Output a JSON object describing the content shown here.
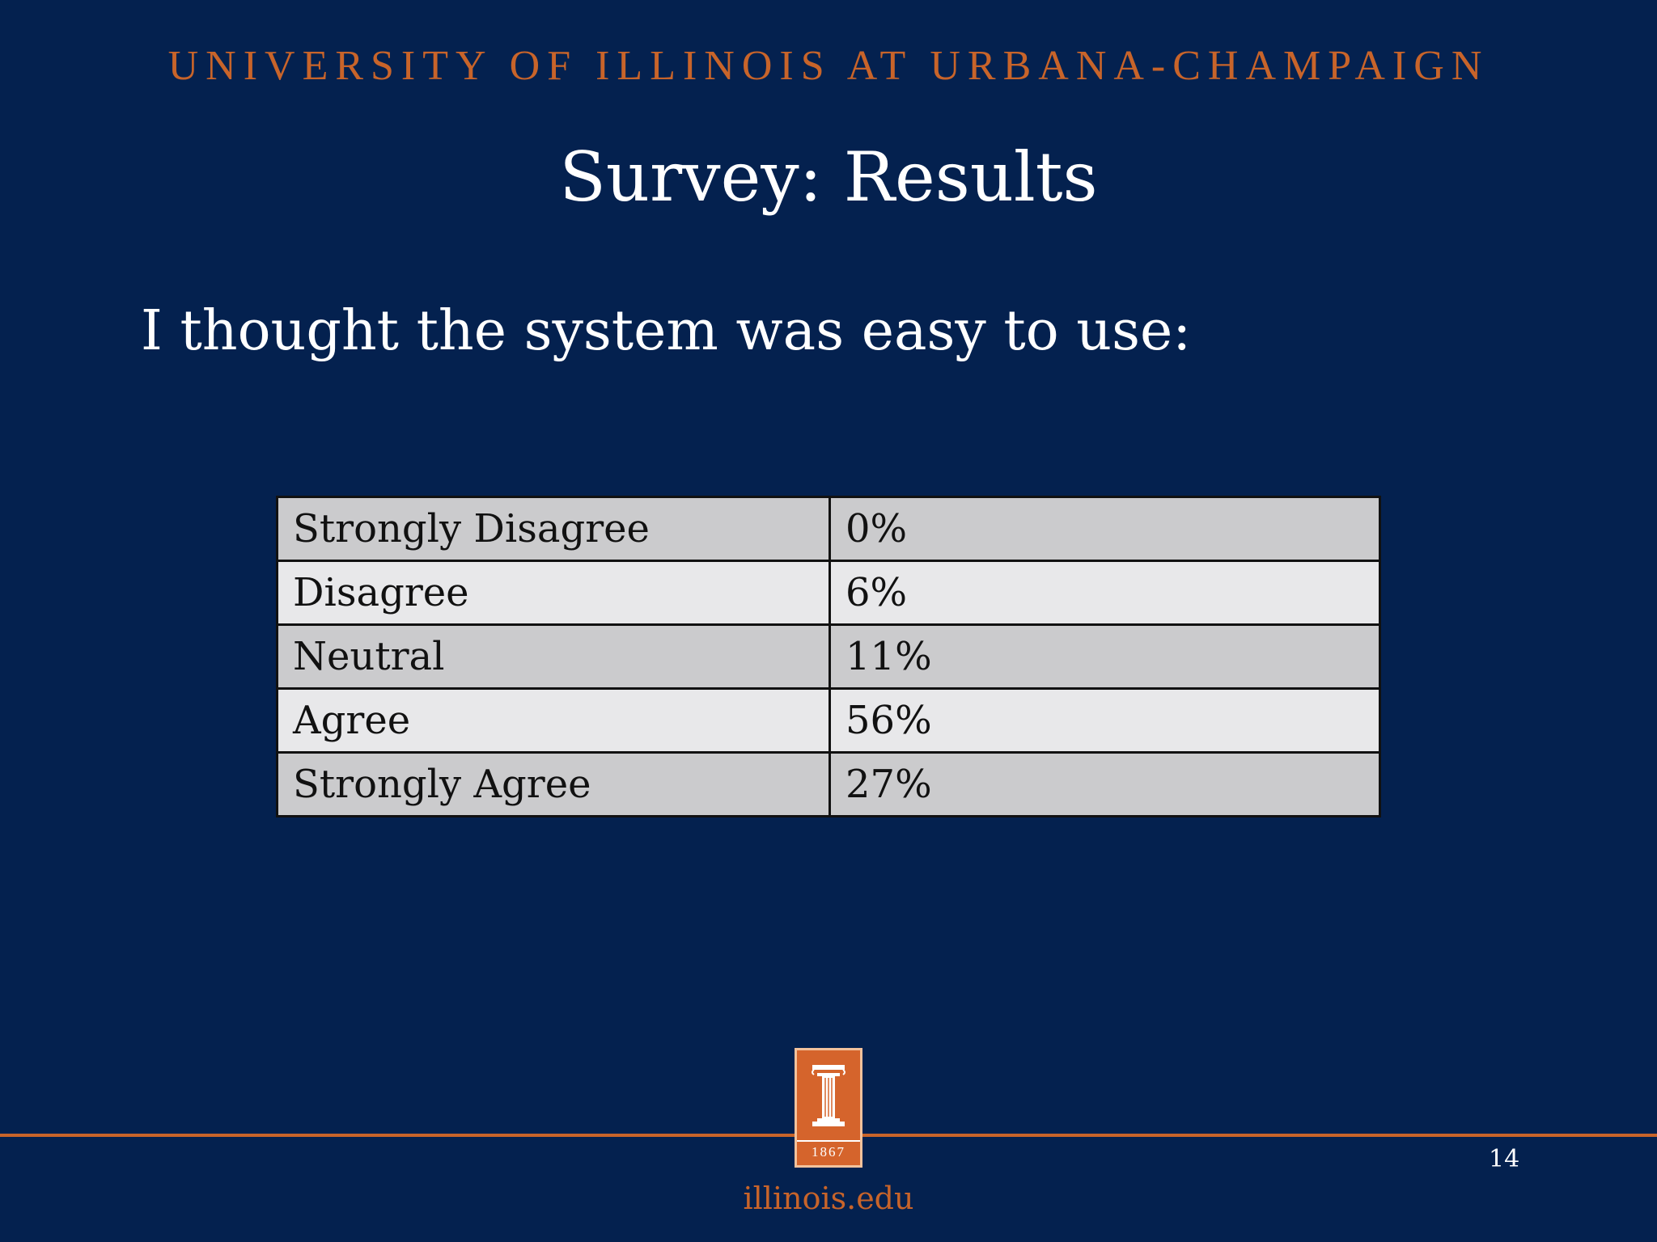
{
  "header": {
    "university": "UNIVERSITY OF ILLINOIS AT URBANA-CHAMPAIGN"
  },
  "slide": {
    "title": "Survey: Results",
    "question": "I thought the system was easy to use:"
  },
  "results": [
    {
      "response": "Strongly Disagree",
      "percent": "0%"
    },
    {
      "response": "Disagree",
      "percent": "6%"
    },
    {
      "response": "Neutral",
      "percent": "11%"
    },
    {
      "response": "Agree",
      "percent": "56%"
    },
    {
      "response": "Strongly Agree",
      "percent": "27%"
    }
  ],
  "footer": {
    "logo_year": "1867",
    "url": "illinois.edu",
    "page_number": "14"
  },
  "colors": {
    "background": "#04214f",
    "accent_orange": "#c8642a",
    "row_dark": "#cbcbcd",
    "row_light": "#e8e8ea"
  }
}
